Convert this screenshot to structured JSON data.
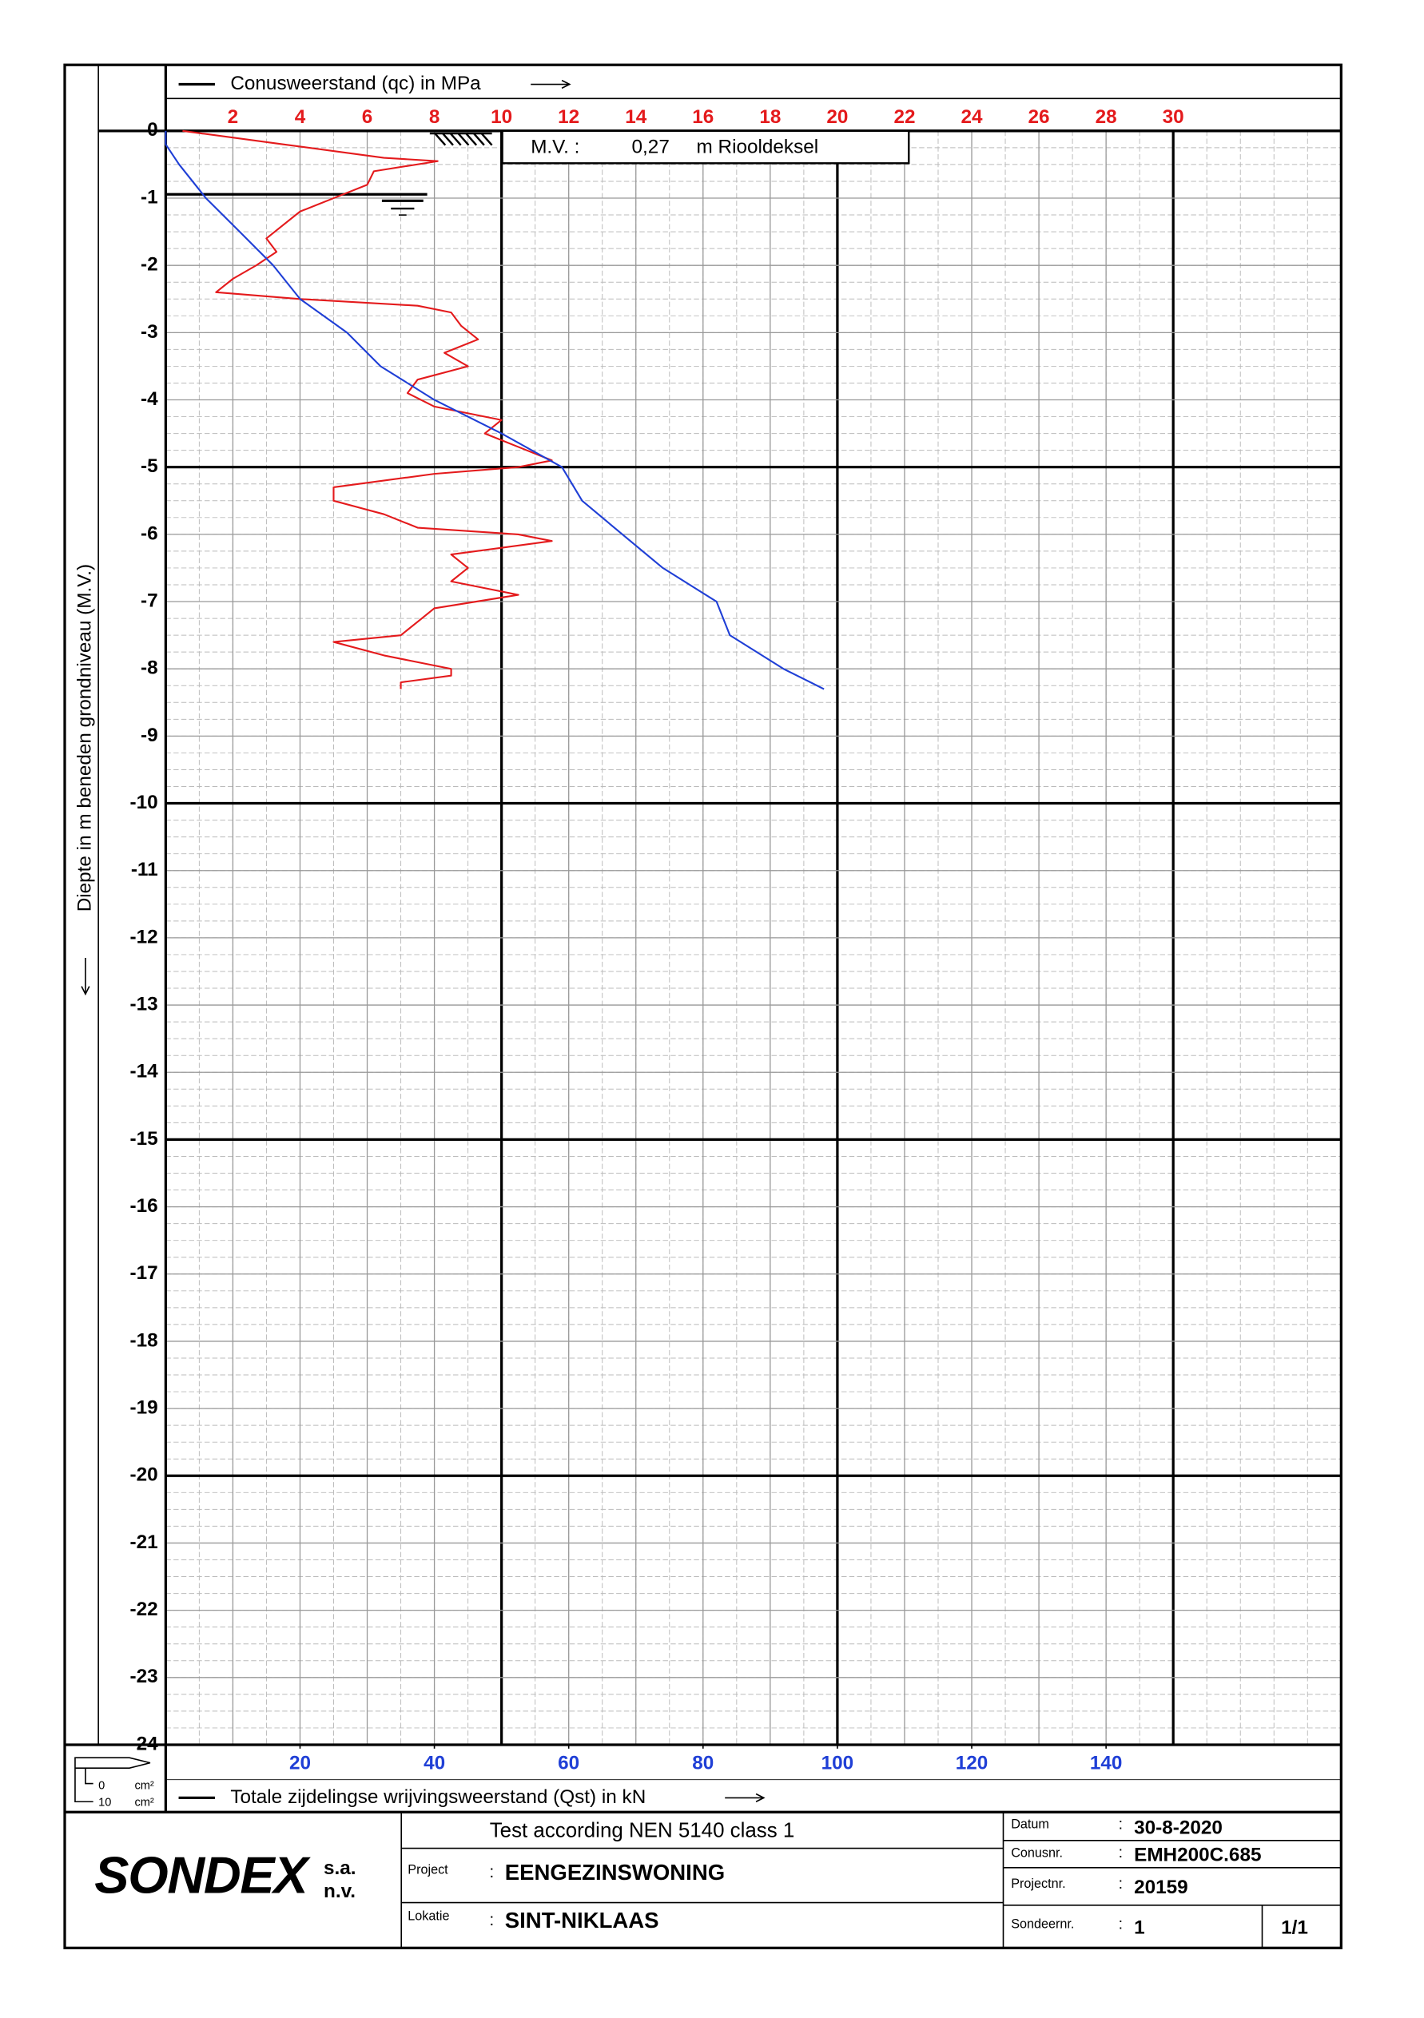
{
  "chart_data": {
    "type": "line",
    "y_label": "Diepte in m beneden grondniveau (M.V.)",
    "ylim": [
      0,
      -24
    ],
    "yticks": [
      0,
      -1,
      -2,
      -3,
      -4,
      -5,
      -6,
      -7,
      -8,
      -9,
      -10,
      -11,
      -12,
      -13,
      -14,
      -15,
      -16,
      -17,
      -18,
      -19,
      -20,
      -21,
      -22,
      -23,
      -24
    ],
    "xlim": [
      0,
      35
    ],
    "xticks": [
      2,
      4,
      6,
      8,
      10,
      12,
      14,
      16,
      18,
      20,
      22,
      24,
      26,
      28,
      30
    ],
    "x2lim": [
      0,
      175
    ],
    "x2ticks": [
      20,
      40,
      60,
      80,
      100,
      120,
      140
    ],
    "grid": true,
    "series": [
      {
        "name": "Conusweerstand (qc) in MPa",
        "color": "#e41a1c",
        "axis": "x",
        "depth": [
          0,
          -0.2,
          -0.4,
          -0.45,
          -0.6,
          -0.8,
          -1.0,
          -1.2,
          -1.4,
          -1.6,
          -1.8,
          -2.0,
          -2.2,
          -2.4,
          -2.5,
          -2.6,
          -2.7,
          -2.9,
          -3.1,
          -3.3,
          -3.5,
          -3.7,
          -3.9,
          -4.1,
          -4.3,
          -4.5,
          -4.7,
          -4.9,
          -5.0,
          -5.1,
          -5.3,
          -5.5,
          -5.7,
          -5.9,
          -6.0,
          -6.1,
          -6.3,
          -6.5,
          -6.7,
          -6.9,
          -7.1,
          -7.3,
          -7.5,
          -7.6,
          -7.8,
          -8.0,
          -8.1,
          -8.2,
          -8.3
        ],
        "values": [
          0.5,
          3.5,
          6.5,
          8.1,
          6.2,
          6.0,
          5.0,
          4.0,
          3.5,
          3.0,
          3.3,
          2.7,
          2.0,
          1.5,
          4.0,
          7.5,
          8.5,
          8.8,
          9.3,
          8.3,
          9.0,
          7.5,
          7.2,
          8.0,
          10.0,
          9.5,
          10.5,
          11.5,
          10.5,
          8.0,
          5.0,
          5.0,
          6.5,
          7.5,
          10.5,
          11.5,
          8.5,
          9.0,
          8.5,
          10.5,
          8.0,
          7.5,
          7.0,
          5.0,
          6.5,
          8.5,
          8.5,
          7.0,
          7.0
        ]
      },
      {
        "name": "Totale zijdelingse wrijvingsweerstand (Qst) in kN",
        "color": "#1f3fd6",
        "axis": "x2",
        "depth": [
          0,
          -0.2,
          -0.5,
          -1.0,
          -1.5,
          -2.0,
          -2.5,
          -3.0,
          -3.5,
          -4.0,
          -4.5,
          -5.0,
          -5.5,
          -6.0,
          -6.5,
          -7.0,
          -7.5,
          -8.0,
          -8.3
        ],
        "values": [
          0,
          0,
          2,
          6,
          11,
          16,
          20,
          27,
          32,
          40,
          50,
          59,
          62,
          68,
          74,
          82,
          84,
          92,
          98
        ]
      }
    ]
  },
  "mv": {
    "label": "M.V. :",
    "value": "0,27",
    "unit": "m Riooldeksel"
  },
  "cone": {
    "top": "0",
    "bottom": "10",
    "unit": "cm²"
  },
  "footer": {
    "logo": "SONDEX",
    "suffix1": "s.a.",
    "suffix2": "n.v.",
    "test": "Test according NEN 5140 class 1",
    "separator": ":",
    "project_label": "Project",
    "project": "EENGEZINSWONING",
    "location_label": "Lokatie",
    "location": "SINT-NIKLAAS",
    "date_label": "Datum",
    "date": "30-8-2020",
    "cone_label": "Conusnr.",
    "cone_nr": "EMH200C.685",
    "projectnr_label": "Projectnr.",
    "projectnr": "20159",
    "sounding_label": "Sondeernr.",
    "sounding": "1",
    "page": "1/1"
  }
}
